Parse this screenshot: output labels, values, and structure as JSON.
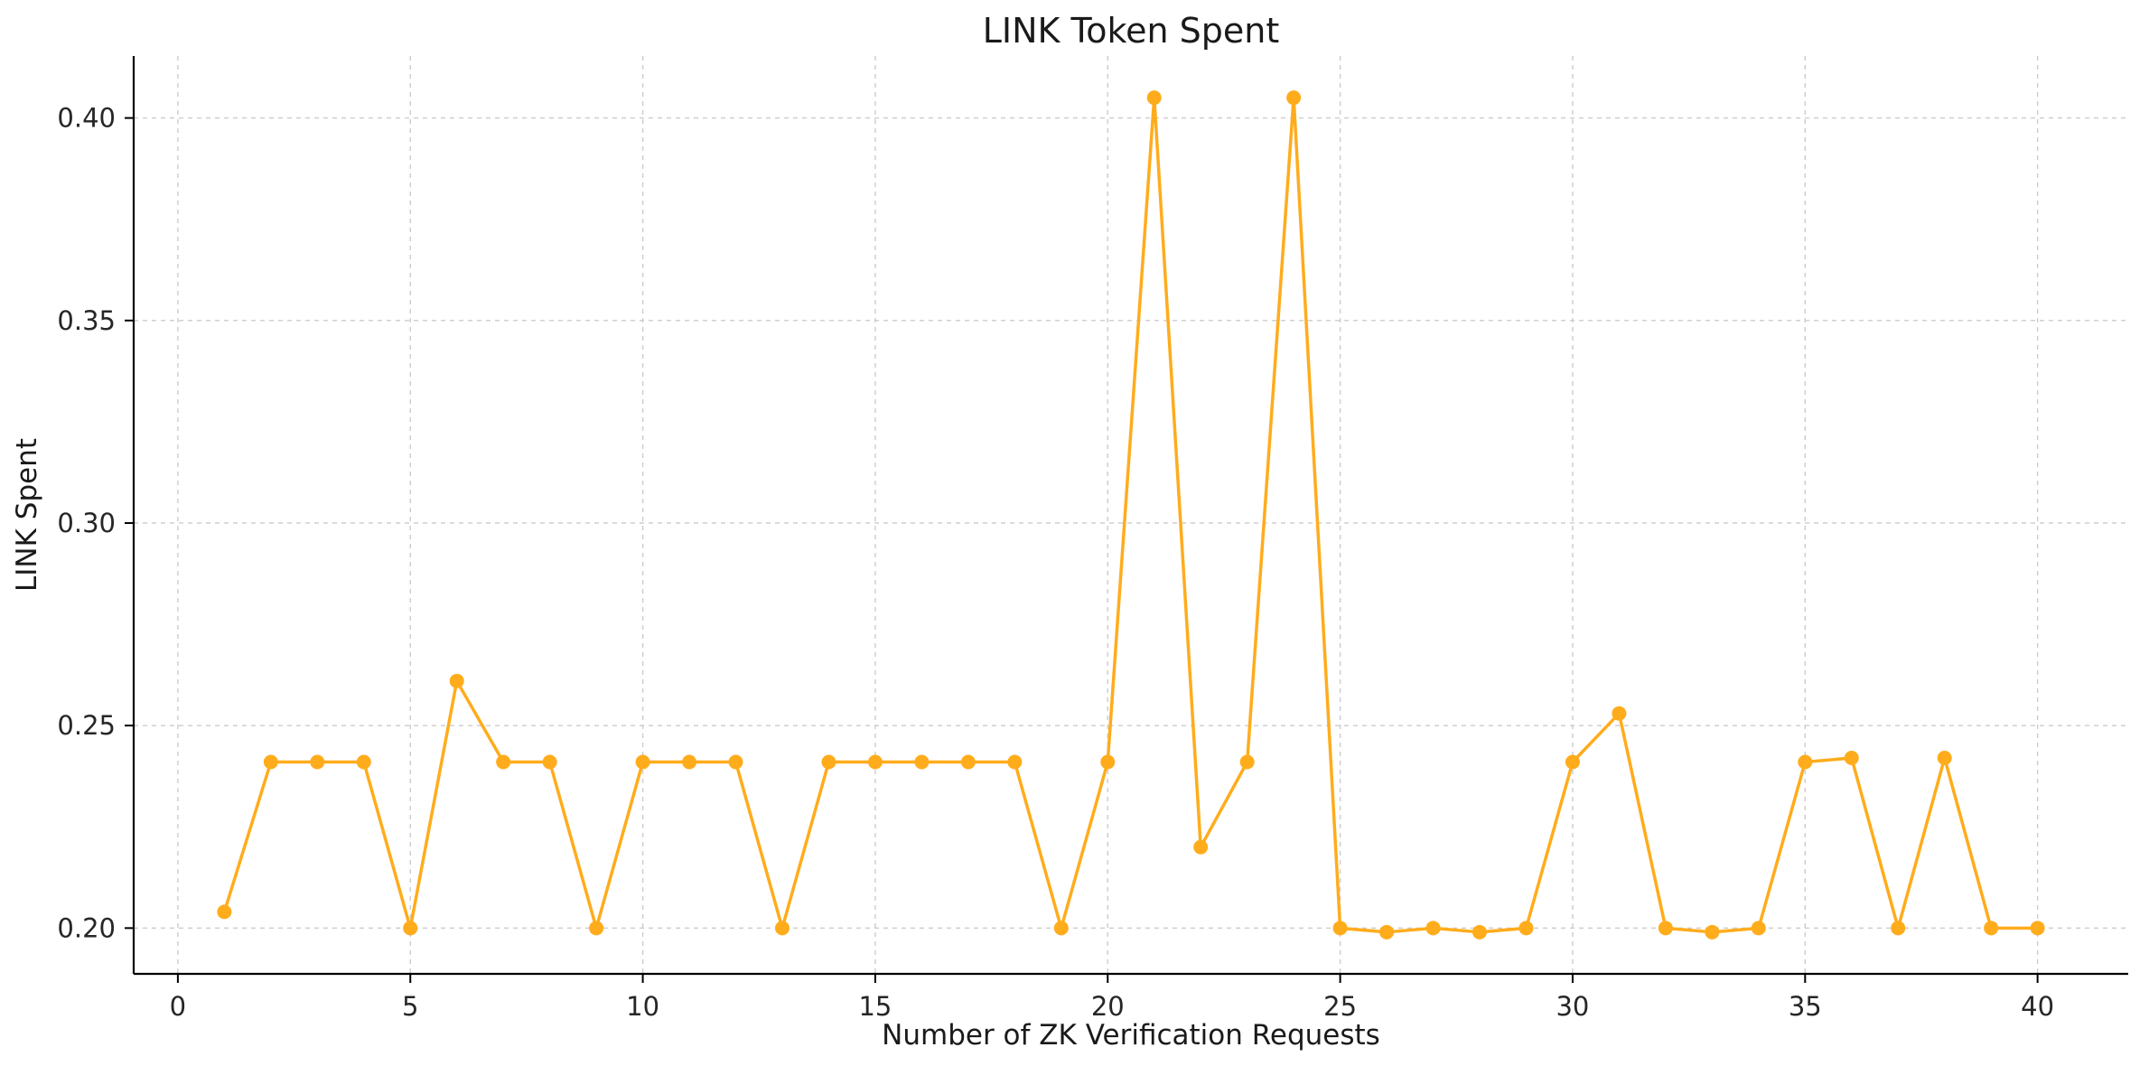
{
  "chart_data": {
    "type": "line",
    "title": "LINK Token Spent",
    "xlabel": "Number of ZK Verification Requests",
    "ylabel": "LINK Spent",
    "series": [
      {
        "name": "LINK Spent",
        "x": [
          1,
          2,
          3,
          4,
          5,
          6,
          7,
          8,
          9,
          10,
          11,
          12,
          13,
          14,
          15,
          16,
          17,
          18,
          19,
          20,
          21,
          22,
          23,
          24,
          25,
          26,
          27,
          28,
          29,
          30,
          31,
          32,
          33,
          34,
          35,
          36,
          37,
          38,
          39,
          40
        ],
        "y": [
          0.204,
          0.241,
          0.241,
          0.241,
          0.2,
          0.261,
          0.241,
          0.241,
          0.2,
          0.241,
          0.241,
          0.241,
          0.2,
          0.241,
          0.241,
          0.241,
          0.241,
          0.241,
          0.2,
          0.241,
          0.405,
          0.22,
          0.241,
          0.405,
          0.2,
          0.199,
          0.2,
          0.199,
          0.2,
          0.241,
          0.253,
          0.2,
          0.199,
          0.2,
          0.241,
          0.242,
          0.2,
          0.242,
          0.2,
          0.2
        ]
      }
    ],
    "xlim": [
      -0.95,
      41.95
    ],
    "ylim": [
      0.1887,
      0.4153
    ],
    "xticks": [
      0,
      5,
      10,
      15,
      20,
      25,
      30,
      35,
      40
    ],
    "xtick_labels": [
      "0",
      "5",
      "10",
      "15",
      "20",
      "25",
      "30",
      "35",
      "40"
    ],
    "yticks": [
      0.2,
      0.25,
      0.3,
      0.35,
      0.4
    ],
    "ytick_labels": [
      "0.20",
      "0.25",
      "0.30",
      "0.35",
      "0.40"
    ],
    "grid": true,
    "grid_style": "dashed",
    "legend": false,
    "marker": "circle",
    "line_color": "#FFAC1C",
    "grid_color": "#cccccc",
    "axis_color": "#000000",
    "text_color": "#262626",
    "background": "#ffffff"
  }
}
